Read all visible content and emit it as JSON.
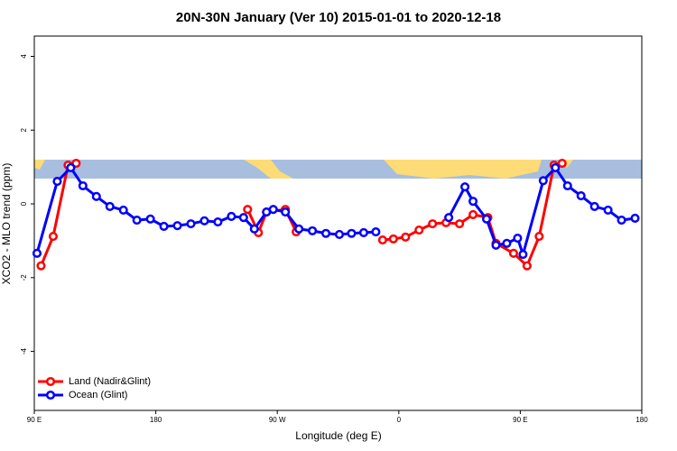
{
  "chart_data": {
    "type": "line",
    "title": "20N-30N January (Ver 10)   2015-01-01 to 2020-12-18",
    "x_label": "Longitude (deg E)",
    "y_label": "XCO2 - MLO trend (ppm)",
    "xlim": [
      90,
      540
    ],
    "ylim": [
      -5.6,
      4.55
    ],
    "xticks": [
      {
        "value": 90,
        "label": "90 E"
      },
      {
        "value": 180,
        "label": "180"
      },
      {
        "value": 270,
        "label": "90 W"
      },
      {
        "value": 360,
        "label": "0"
      },
      {
        "value": 450,
        "label": "90 E"
      },
      {
        "value": 540,
        "label": "180"
      }
    ],
    "yticks": [
      -4,
      -2,
      0,
      2,
      4
    ],
    "legend": "bottom-left",
    "series": [
      {
        "name": "Land (Nadir&Glint)",
        "color": "#ff0000",
        "x": [
          95,
          104,
          115,
          121,
          180,
          248,
          256,
          262,
          276,
          284,
          320,
          348,
          356,
          365,
          375,
          385,
          395,
          405,
          415,
          426,
          432,
          445,
          455,
          464,
          475,
          481
        ],
        "values": [
          -1.68,
          -0.88,
          1.05,
          1.1,
          null,
          -0.15,
          -0.78,
          -0.22,
          -0.15,
          -0.76,
          null,
          -0.98,
          -0.95,
          -0.9,
          -0.71,
          -0.54,
          -0.51,
          -0.54,
          -0.29,
          -0.37,
          -1.07,
          -1.34,
          -1.68,
          -0.88,
          1.05,
          1.1
        ]
      },
      {
        "name": "Ocean (Glint)",
        "color": "#0000ff",
        "x": [
          92,
          107,
          117,
          126,
          136,
          146,
          156,
          166,
          176,
          186,
          196,
          206,
          216,
          226,
          236,
          245,
          253,
          262,
          267,
          276,
          286,
          296,
          306,
          316,
          325,
          334,
          343,
          370,
          397,
          409,
          415,
          425,
          432,
          440,
          448,
          452,
          467,
          476,
          485,
          495,
          505,
          515,
          525,
          535
        ],
        "values": [
          -1.34,
          0.61,
          0.98,
          0.49,
          0.2,
          -0.07,
          -0.17,
          -0.44,
          -0.41,
          -0.61,
          -0.59,
          -0.54,
          -0.46,
          -0.49,
          -0.34,
          -0.37,
          -0.68,
          -0.22,
          -0.15,
          -0.22,
          -0.68,
          -0.73,
          -0.8,
          -0.83,
          -0.8,
          -0.78,
          -0.76,
          null,
          -0.37,
          0.46,
          0.07,
          -0.41,
          -1.12,
          -1.07,
          -0.93,
          -1.37,
          0.63,
          0.98,
          0.49,
          0.22,
          -0.07,
          -0.17,
          -0.44,
          -0.39
        ]
      }
    ]
  }
}
